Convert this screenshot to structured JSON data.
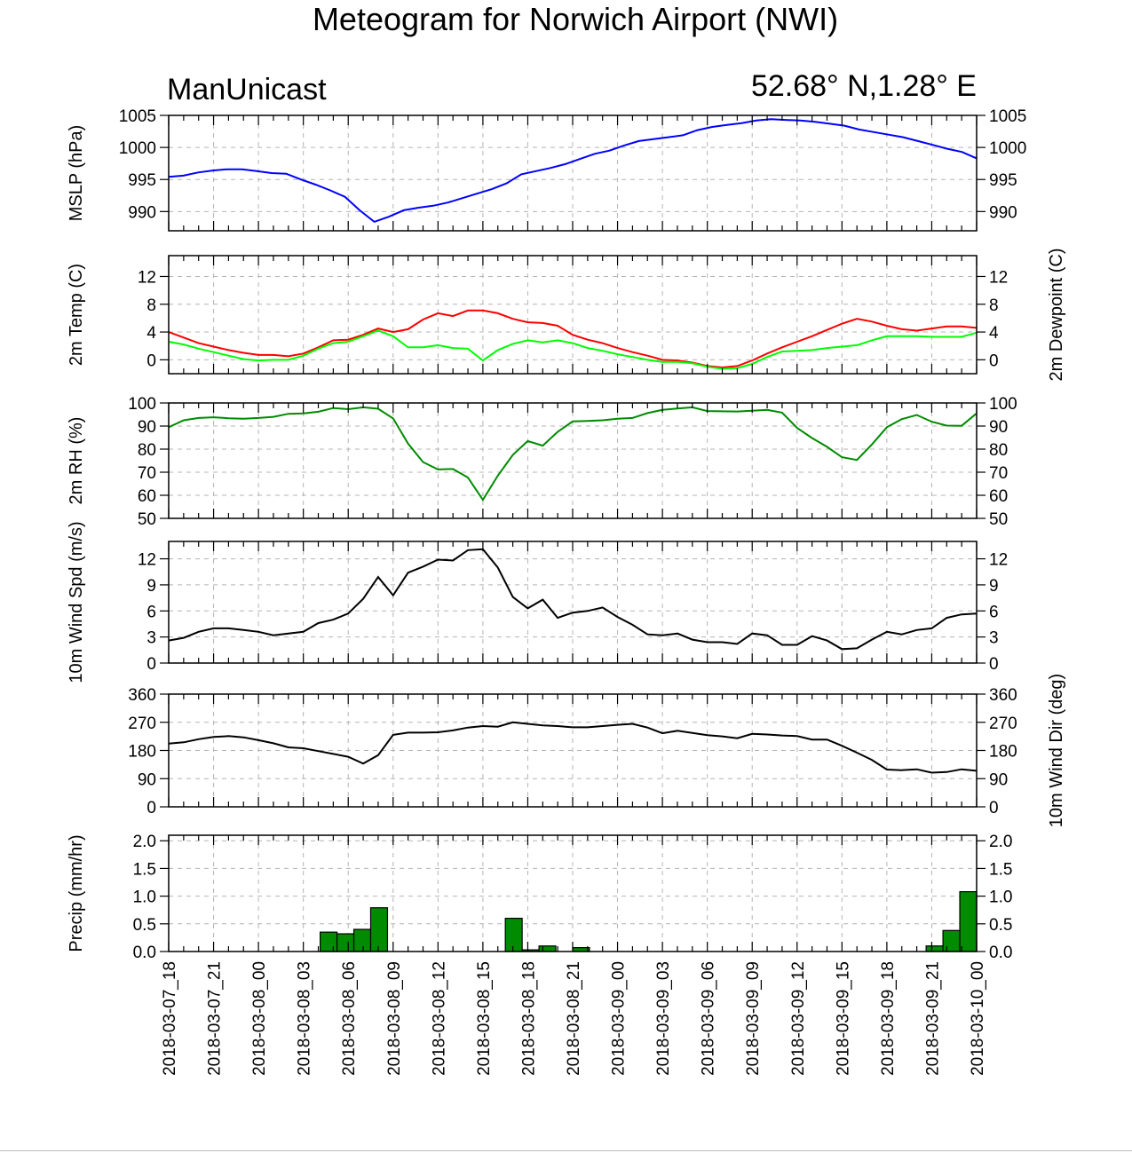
{
  "title": "Meteogram for Norwich Airport (NWI)",
  "subtitle_left": "ManUnicast",
  "subtitle_right": "52.68° N,1.28° E",
  "x_tick_labels": [
    "2018-03-07_18",
    "2018-03-07_21",
    "2018-03-08_00",
    "2018-03-08_03",
    "2018-03-08_06",
    "2018-03-08_09",
    "2018-03-08_12",
    "2018-03-08_15",
    "2018-03-08_18",
    "2018-03-08_21",
    "2018-03-09_00",
    "2018-03-09_03",
    "2018-03-09_06",
    "2018-03-09_09",
    "2018-03-09_12",
    "2018-03-09_15",
    "2018-03-09_18",
    "2018-03-09_21",
    "2018-03-10_00"
  ],
  "chart_data": [
    {
      "type": "line",
      "ylabel": "MSLP (hPa)",
      "ylim": [
        987,
        1005
      ],
      "yticks": [
        990,
        995,
        1000,
        1005
      ],
      "tick_labels": [
        "990",
        "995",
        "1000",
        "1005"
      ],
      "series": [
        {
          "color": "#0000ff",
          "values": [
            995.4,
            995.6,
            996.1,
            996.4,
            996.6,
            996.6,
            996.3,
            996.0,
            995.9,
            995.0,
            994.2,
            993.3,
            992.3,
            990.2,
            988.4,
            989.2,
            990.2,
            990.6,
            990.9,
            991.4,
            992.1,
            992.8,
            993.5,
            994.4,
            995.8,
            996.3,
            996.8,
            997.4,
            998.2,
            999.0,
            999.5,
            1000.3,
            1001.0,
            1001.3,
            1001.6,
            1001.9,
            1002.7,
            1003.2,
            1003.5,
            1003.8,
            1004.2,
            1004.4,
            1004.3,
            1004.2,
            1004.0,
            1003.7,
            1003.4,
            1002.8,
            1002.4,
            1002.0,
            1001.6,
            1001.0,
            1000.4,
            999.8,
            999.3,
            998.3
          ]
        }
      ]
    },
    {
      "type": "line",
      "ylabel": "2m Temp (C)",
      "ylabel_right": "2m Dewpoint (C)",
      "ylim": [
        -2,
        15
      ],
      "yticks": [
        0,
        4,
        8,
        12
      ],
      "tick_labels": [
        "0",
        "4",
        "8",
        "12"
      ],
      "series": [
        {
          "color": "#ff0000",
          "values": [
            4.0,
            3.2,
            2.4,
            1.9,
            1.4,
            1.0,
            0.7,
            0.7,
            0.5,
            0.9,
            1.8,
            2.8,
            2.9,
            3.6,
            4.5,
            4.0,
            4.4,
            5.8,
            6.7,
            6.3,
            7.1,
            7.1,
            6.7,
            5.9,
            5.4,
            5.3,
            4.9,
            3.6,
            2.9,
            2.4,
            1.7,
            1.1,
            0.6,
            0.0,
            -0.1,
            -0.4,
            -0.9,
            -1.1,
            -0.9,
            -0.1,
            0.9,
            1.8,
            2.6,
            3.4,
            4.3,
            5.2,
            5.9,
            5.5,
            4.9,
            4.4,
            4.2,
            4.5,
            4.8,
            4.8,
            4.6
          ]
        },
        {
          "color": "#00ff00",
          "values": [
            2.6,
            2.2,
            1.6,
            1.1,
            0.6,
            0.1,
            -0.1,
            0.0,
            0.0,
            0.6,
            1.6,
            2.4,
            2.6,
            3.4,
            4.2,
            3.4,
            1.8,
            1.8,
            2.1,
            1.7,
            1.6,
            -0.1,
            1.4,
            2.3,
            2.8,
            2.5,
            2.8,
            2.4,
            1.7,
            1.3,
            0.8,
            0.4,
            0.0,
            -0.3,
            -0.3,
            -0.5,
            -1.0,
            -1.3,
            -1.2,
            -0.6,
            0.4,
            1.2,
            1.3,
            1.4,
            1.7,
            1.9,
            2.1,
            2.8,
            3.4,
            3.4,
            3.4,
            3.3,
            3.3,
            3.3,
            3.9
          ]
        }
      ]
    },
    {
      "type": "line",
      "ylabel": "2m RH (%)",
      "ylim": [
        50,
        100
      ],
      "yticks": [
        50,
        60,
        70,
        80,
        90,
        100
      ],
      "tick_labels": [
        "50",
        "60",
        "70",
        "80",
        "90",
        "100"
      ],
      "series": [
        {
          "color": "#008b00",
          "values": [
            89.5,
            92.5,
            93.5,
            93.8,
            93.4,
            93.2,
            93.5,
            94.0,
            95.3,
            95.5,
            96.2,
            97.8,
            97.3,
            98.1,
            97.5,
            93.3,
            82.4,
            74.4,
            71.2,
            71.4,
            67.7,
            58.0,
            68.5,
            77.5,
            83.5,
            81.5,
            87.5,
            92.0,
            92.2,
            92.5,
            93.2,
            93.5,
            95.6,
            97.0,
            97.6,
            98.1,
            96.5,
            96.4,
            96.3,
            96.6,
            97.0,
            95.8,
            89.2,
            84.8,
            81.0,
            76.5,
            75.3,
            82.0,
            89.5,
            93.0,
            94.8,
            91.9,
            90.2,
            90.1,
            95.5
          ]
        }
      ]
    },
    {
      "type": "line",
      "ylabel": "10m Wind Spd (m/s)",
      "ylim": [
        0,
        14
      ],
      "yticks": [
        0,
        3,
        6,
        9,
        12
      ],
      "tick_labels": [
        "0",
        "3",
        "6",
        "9",
        "12"
      ],
      "series": [
        {
          "color": "#000000",
          "values": [
            2.6,
            2.9,
            3.6,
            4.0,
            4.0,
            3.8,
            3.6,
            3.2,
            3.4,
            3.6,
            4.6,
            5.0,
            5.7,
            7.4,
            9.9,
            7.8,
            10.4,
            11.1,
            11.9,
            11.8,
            13.0,
            13.1,
            11.0,
            7.6,
            6.3,
            7.3,
            5.2,
            5.8,
            6.0,
            6.4,
            5.3,
            4.4,
            3.3,
            3.2,
            3.4,
            2.7,
            2.4,
            2.4,
            2.2,
            3.4,
            3.2,
            2.1,
            2.1,
            3.1,
            2.6,
            1.6,
            1.7,
            2.7,
            3.6,
            3.3,
            3.8,
            4.0,
            5.2,
            5.6,
            5.7
          ]
        }
      ]
    },
    {
      "type": "line",
      "ylabel": "",
      "ylabel_right": "10m Wind Dir (deg)",
      "ylim": [
        0,
        360
      ],
      "yticks": [
        0,
        90,
        180,
        270,
        360
      ],
      "tick_labels": [
        "0",
        "90",
        "180",
        "270",
        "360"
      ],
      "series": [
        {
          "color": "#000000",
          "values": [
            202,
            206,
            216,
            223,
            226,
            222,
            213,
            203,
            190,
            187,
            178,
            169,
            160,
            138,
            165,
            230,
            237,
            237,
            238,
            244,
            253,
            258,
            256,
            270,
            265,
            260,
            258,
            254,
            254,
            258,
            262,
            265,
            253,
            235,
            243,
            236,
            229,
            225,
            219,
            233,
            231,
            228,
            226,
            215,
            215,
            195,
            173,
            150,
            119,
            117,
            120,
            109,
            111,
            120,
            115
          ]
        }
      ]
    },
    {
      "type": "bar",
      "ylabel": "Precip (mm/hr)",
      "ylim": [
        0,
        2.1
      ],
      "yticks": [
        0.0,
        0.5,
        1.0,
        1.5,
        2.0
      ],
      "tick_labels": [
        "0.0",
        "0.5",
        "1.0",
        "1.5",
        "2.0"
      ],
      "color": "#008b00",
      "values": [
        0,
        0,
        0,
        0,
        0,
        0,
        0,
        0,
        0,
        0.35,
        0.32,
        0.4,
        0.79,
        0,
        0,
        0,
        0,
        0,
        0,
        0,
        0.6,
        0.03,
        0.1,
        0,
        0.07,
        0,
        0,
        0,
        0,
        0,
        0,
        0,
        0,
        0,
        0,
        0,
        0,
        0,
        0,
        0,
        0,
        0,
        0,
        0,
        0,
        0.1,
        0.38,
        1.08
      ]
    }
  ]
}
